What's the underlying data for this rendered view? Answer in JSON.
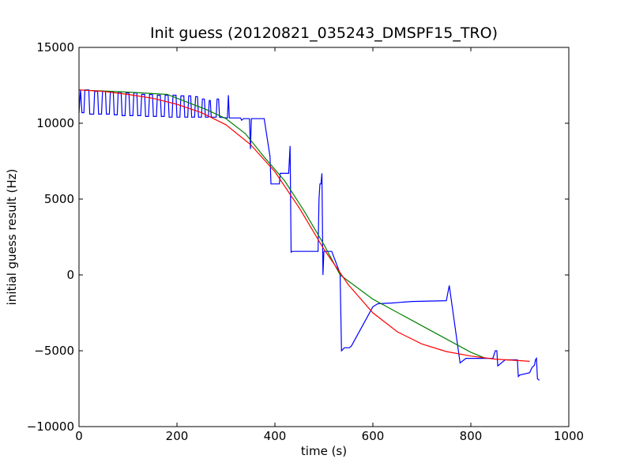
{
  "chart_data": {
    "type": "line",
    "title": "Init guess (20120821_035243_DMSPF15_TRO)",
    "xlabel": "time (s)",
    "ylabel": "initial guess result (Hz)",
    "xlim": [
      0,
      1000
    ],
    "ylim": [
      -10000,
      15000
    ],
    "xticks": [
      0,
      200,
      400,
      600,
      800,
      1000
    ],
    "yticks": [
      -10000,
      -5000,
      0,
      5000,
      10000,
      15000
    ],
    "xtick_labels": [
      "0",
      "200",
      "400",
      "600",
      "800",
      "1000"
    ],
    "ytick_labels": [
      "−10000",
      "−5000",
      "0",
      "5000",
      "10000",
      "15000"
    ],
    "grid": false,
    "legend": "none",
    "series": [
      {
        "color": "#0000ff",
        "points": [
          [
            0,
            10700
          ],
          [
            3,
            12200
          ],
          [
            6,
            10700
          ],
          [
            10,
            10700
          ],
          [
            12,
            12200
          ],
          [
            20,
            12200
          ],
          [
            22,
            10600
          ],
          [
            30,
            10600
          ],
          [
            32,
            12100
          ],
          [
            38,
            12100
          ],
          [
            40,
            10600
          ],
          [
            46,
            10600
          ],
          [
            48,
            12100
          ],
          [
            54,
            12100
          ],
          [
            56,
            10600
          ],
          [
            62,
            10600
          ],
          [
            64,
            12100
          ],
          [
            70,
            12100
          ],
          [
            72,
            10550
          ],
          [
            78,
            10550
          ],
          [
            80,
            12050
          ],
          [
            86,
            12050
          ],
          [
            88,
            10500
          ],
          [
            94,
            10500
          ],
          [
            96,
            12000
          ],
          [
            102,
            12000
          ],
          [
            104,
            10500
          ],
          [
            110,
            10500
          ],
          [
            112,
            12000
          ],
          [
            118,
            12000
          ],
          [
            120,
            10500
          ],
          [
            126,
            10500
          ],
          [
            128,
            11900
          ],
          [
            134,
            11900
          ],
          [
            136,
            10450
          ],
          [
            142,
            10450
          ],
          [
            144,
            11900
          ],
          [
            150,
            11900
          ],
          [
            152,
            10450
          ],
          [
            158,
            10450
          ],
          [
            160,
            11850
          ],
          [
            166,
            11850
          ],
          [
            168,
            10450
          ],
          [
            174,
            10450
          ],
          [
            176,
            11850
          ],
          [
            182,
            11850
          ],
          [
            184,
            10400
          ],
          [
            190,
            10400
          ],
          [
            192,
            11850
          ],
          [
            198,
            11850
          ],
          [
            200,
            10400
          ],
          [
            206,
            10400
          ],
          [
            208,
            11800
          ],
          [
            214,
            11800
          ],
          [
            216,
            10400
          ],
          [
            222,
            10400
          ],
          [
            224,
            11800
          ],
          [
            228,
            11800
          ],
          [
            230,
            10400
          ],
          [
            236,
            10400
          ],
          [
            238,
            11750
          ],
          [
            242,
            11750
          ],
          [
            244,
            10400
          ],
          [
            250,
            10400
          ],
          [
            252,
            11600
          ],
          [
            256,
            11600
          ],
          [
            258,
            10400
          ],
          [
            264,
            10400
          ],
          [
            266,
            11500
          ],
          [
            268,
            11500
          ],
          [
            270,
            10400
          ],
          [
            280,
            10400
          ],
          [
            282,
            11600
          ],
          [
            285,
            11600
          ],
          [
            287,
            10400
          ],
          [
            303,
            10350
          ],
          [
            305,
            11850
          ],
          [
            307,
            10350
          ],
          [
            330,
            10350
          ],
          [
            332,
            10200
          ],
          [
            336,
            10300
          ],
          [
            348,
            10300
          ],
          [
            350,
            8300
          ],
          [
            352,
            10300
          ],
          [
            378,
            10300
          ],
          [
            390,
            7800
          ],
          [
            392,
            6000
          ],
          [
            409,
            6000
          ],
          [
            411,
            6700
          ],
          [
            428,
            6700
          ],
          [
            431,
            8500
          ],
          [
            433,
            1500
          ],
          [
            435,
            1550
          ],
          [
            488,
            1550
          ],
          [
            490,
            5000
          ],
          [
            492,
            6000
          ],
          [
            494,
            6000
          ],
          [
            496,
            6700
          ],
          [
            498,
            0
          ],
          [
            500,
            1550
          ],
          [
            516,
            1550
          ],
          [
            533,
            100
          ],
          [
            536,
            -5000
          ],
          [
            542,
            -4800
          ],
          [
            552,
            -4800
          ],
          [
            556,
            -4700
          ],
          [
            600,
            -2100
          ],
          [
            610,
            -1900
          ],
          [
            640,
            -1850
          ],
          [
            680,
            -1750
          ],
          [
            750,
            -1700
          ],
          [
            756,
            -700
          ],
          [
            778,
            -5800
          ],
          [
            790,
            -5500
          ],
          [
            800,
            -5500
          ],
          [
            845,
            -5500
          ],
          [
            850,
            -5000
          ],
          [
            853,
            -5000
          ],
          [
            855,
            -6000
          ],
          [
            870,
            -5600
          ],
          [
            895,
            -5600
          ],
          [
            897,
            -6700
          ],
          [
            900,
            -6600
          ],
          [
            920,
            -6450
          ],
          [
            925,
            -6100
          ],
          [
            930,
            -5950
          ],
          [
            932,
            -5600
          ],
          [
            934,
            -5500
          ],
          [
            936,
            -6850
          ],
          [
            940,
            -6950
          ]
        ]
      },
      {
        "color": "#008000",
        "points": [
          [
            0,
            12200
          ],
          [
            100,
            12050
          ],
          [
            180,
            11900
          ],
          [
            260,
            10900
          ],
          [
            300,
            10300
          ],
          [
            340,
            9300
          ],
          [
            380,
            7700
          ],
          [
            420,
            6200
          ],
          [
            460,
            4200
          ],
          [
            500,
            2000
          ],
          [
            533,
            0
          ],
          [
            600,
            -1600
          ],
          [
            700,
            -3350
          ],
          [
            800,
            -5100
          ],
          [
            830,
            -5500
          ]
        ]
      },
      {
        "color": "#ff0000",
        "points": [
          [
            0,
            12200
          ],
          [
            50,
            12100
          ],
          [
            100,
            11900
          ],
          [
            150,
            11650
          ],
          [
            200,
            11250
          ],
          [
            250,
            10700
          ],
          [
            300,
            9900
          ],
          [
            350,
            8600
          ],
          [
            400,
            6800
          ],
          [
            450,
            4400
          ],
          [
            500,
            1700
          ],
          [
            550,
            -650
          ],
          [
            600,
            -2500
          ],
          [
            650,
            -3750
          ],
          [
            700,
            -4550
          ],
          [
            750,
            -5050
          ],
          [
            800,
            -5350
          ],
          [
            850,
            -5550
          ],
          [
            900,
            -5650
          ],
          [
            920,
            -5700
          ]
        ]
      }
    ]
  }
}
